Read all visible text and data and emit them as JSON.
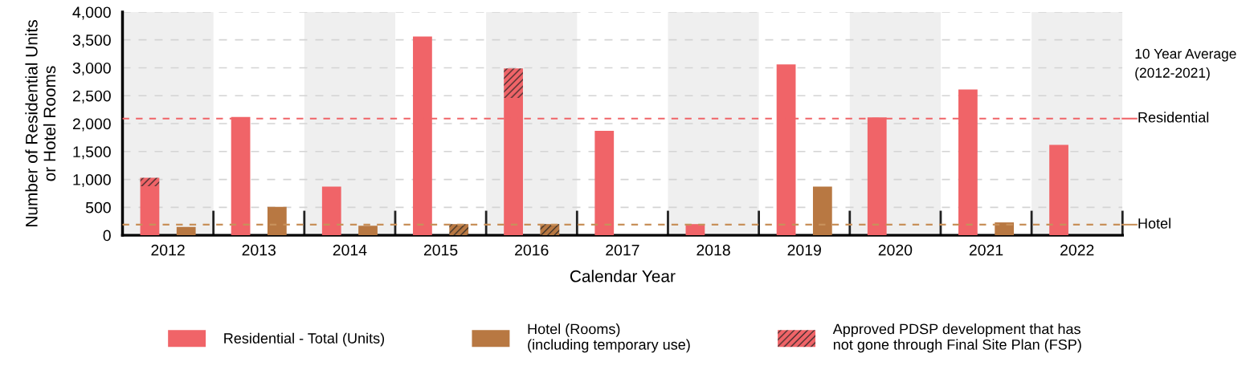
{
  "chart_data": {
    "type": "bar",
    "xlabel": "Calendar Year",
    "ylabel": "Number of Residential Units\nor Hotel Rooms",
    "categories": [
      "2012",
      "2013",
      "2014",
      "2015",
      "2016",
      "2017",
      "2018",
      "2019",
      "2020",
      "2021",
      "2022"
    ],
    "series": [
      {
        "name": "Residential - Total (Units)",
        "color": "#f06468",
        "values": [
          880,
          2120,
          870,
          3560,
          2460,
          1870,
          200,
          3060,
          2110,
          2610,
          1620
        ]
      },
      {
        "name": "Hotel (Rooms)\n(including temporary use)",
        "color": "#b87842",
        "values": [
          150,
          510,
          170,
          0,
          0,
          0,
          0,
          870,
          0,
          230,
          0
        ]
      },
      {
        "name": "Approved PDSP development that has\nnot gone through Final Site Plan (FSP)",
        "color": "#f06468",
        "values": [
          150,
          null,
          null,
          null,
          530,
          null,
          null,
          null,
          null,
          null,
          null
        ],
        "base": [
          880,
          null,
          null,
          null,
          2460,
          null,
          null,
          null,
          null,
          null,
          null
        ]
      },
      {
        "color": "#b87842",
        "values": [
          null,
          null,
          null,
          200,
          200,
          null,
          null,
          null,
          null,
          null,
          null
        ],
        "base": [
          null,
          null,
          null,
          0,
          0,
          null,
          null,
          null,
          null,
          null,
          null
        ]
      }
    ],
    "ylim": [
      0,
      4000
    ],
    "yticks": [
      0,
      500,
      {
        "value": 1000,
        "label": "1,000"
      },
      {
        "value": 1500,
        "label": "1,500"
      },
      {
        "value": 2000,
        "label": "2,000"
      },
      {
        "value": 2500,
        "label": "2,500"
      },
      {
        "value": 3000,
        "label": "3,000"
      },
      {
        "value": 3500,
        "label": "3,500"
      },
      {
        "value": 4000,
        "label": "4,000"
      }
    ],
    "grid": "y",
    "legend": "bottom",
    "ref_lines": [
      {
        "axis": "y",
        "value": 2090,
        "label": "Residential",
        "color": "#f06468",
        "line_style": "dashed"
      },
      {
        "axis": "y",
        "value": 190,
        "label": "Hotel",
        "color": "#c8905a",
        "line_style": "dashed"
      }
    ],
    "bands": [
      {
        "axis": "x",
        "from": "2012",
        "to": "2012",
        "color": "#efefef"
      },
      {
        "axis": "x",
        "from": "2014",
        "to": "2014",
        "color": "#efefef"
      },
      {
        "axis": "x",
        "from": "2016",
        "to": "2016",
        "color": "#efefef"
      },
      {
        "axis": "x",
        "from": "2018",
        "to": "2018",
        "color": "#efefef"
      },
      {
        "axis": "x",
        "from": "2020",
        "to": "2020",
        "color": "#efefef"
      },
      {
        "axis": "x",
        "from": "2022",
        "to": "2022",
        "color": "#efefef"
      }
    ],
    "annotations": [
      "10 Year Average\n(2012-2021)"
    ]
  }
}
